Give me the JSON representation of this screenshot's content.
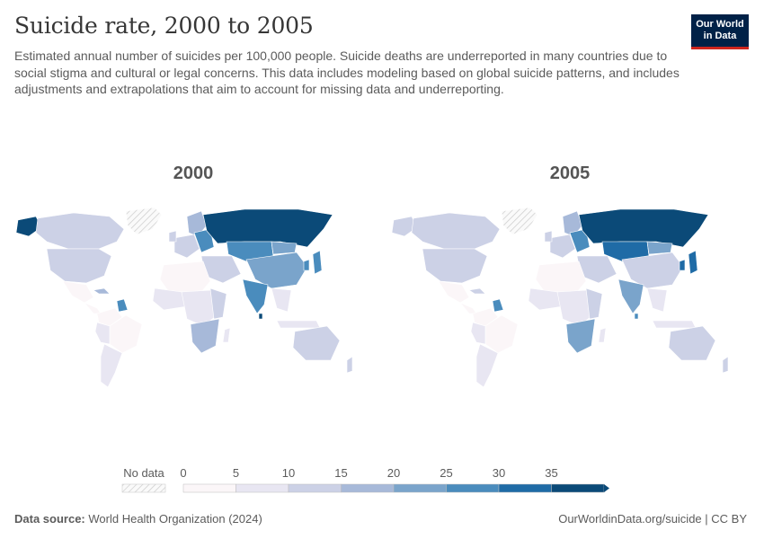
{
  "title": "Suicide rate, 2000 to 2005",
  "subtitle": "Estimated annual number of suicides per 100,000 people. Suicide deaths are underreported in many countries due to social stigma and cultural or legal concerns. This data includes modeling based on global suicide patterns, and includes adjustments and extrapolations that aim to account for missing data and underreporting.",
  "logo": {
    "line1": "Our World",
    "line2": "in Data"
  },
  "maps": [
    {
      "year": "2000"
    },
    {
      "year": "2005"
    }
  ],
  "legend": {
    "no_data_label": "No data",
    "ticks": [
      "0",
      "5",
      "10",
      "15",
      "20",
      "25",
      "30",
      "35"
    ],
    "colors": [
      "#fbf6f8",
      "#e8e6f2",
      "#ccd1e6",
      "#a7b9d9",
      "#7aa4cb",
      "#4a8cbd",
      "#1f6ba6",
      "#0b4a78"
    ]
  },
  "footer": {
    "source_label": "Data source:",
    "source_value": "World Health Organization (2024)",
    "right": "OurWorldinData.org/suicide | CC BY"
  }
}
